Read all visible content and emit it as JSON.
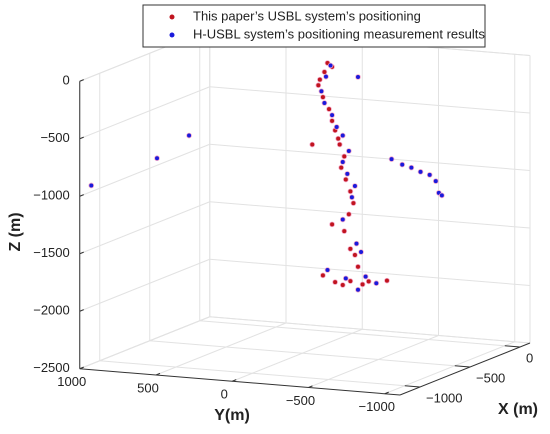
{
  "chart_data": {
    "type": "scatter3d",
    "xlabel": "X (m)",
    "ylabel": "Y(m)",
    "zlabel": "Z (m)",
    "xlim": [
      -1200,
      100
    ],
    "ylim": [
      -1100,
      1000
    ],
    "zlim": [
      -2500,
      0
    ],
    "xticks": [
      {
        "value": -1000,
        "label": "−1000"
      },
      {
        "value": -500,
        "label": "−500"
      },
      0
    ],
    "yticks": [
      1000,
      500,
      0,
      {
        "value": -500,
        "label": "−500"
      },
      {
        "value": -1000,
        "label": "−1000"
      }
    ],
    "zticks": [
      0,
      {
        "value": -500,
        "label": "−500"
      },
      {
        "value": -1000,
        "label": "−1000"
      },
      {
        "value": -1500,
        "label": "−1500"
      },
      {
        "value": -2000,
        "label": "−2000"
      },
      {
        "value": -2500,
        "label": "−2500"
      }
    ],
    "grid": true,
    "series": [
      {
        "name": "This paper’s USBL system’s positioning",
        "color": "#c0141e",
        "x": [
          -400,
          -400,
          -400,
          -400,
          -400,
          -400,
          -400,
          -400,
          -400,
          -400,
          -400,
          -400,
          -400,
          -400,
          -400,
          -400,
          -400,
          -400,
          -400,
          -400,
          -400,
          -400,
          -400,
          -400,
          -400,
          -400,
          -400,
          -400,
          -400,
          -400
        ],
        "y": [
          -100,
          -130,
          -80,
          -50,
          -40,
          -70,
          -110,
          -130,
          -150,
          -170,
          -180,
          0,
          -210,
          -190,
          -220,
          -250,
          -270,
          -240,
          -130,
          -210,
          -250,
          -280,
          -300,
          -70,
          -150,
          -250,
          -370,
          -490,
          -200,
          -330
        ],
        "z": [
          0,
          -30,
          -80,
          -150,
          -200,
          -300,
          -400,
          -500,
          -580,
          -650,
          -700,
          -720,
          -800,
          -900,
          -1000,
          -1100,
          -1200,
          -1300,
          -1400,
          -1450,
          -1600,
          -1650,
          -1750,
          -1850,
          -1900,
          -1880,
          -1870,
          -1850,
          -1920,
          -1900
        ]
      },
      {
        "name": "H-USBL system’s positioning measurement results",
        "color": "#1a1adc",
        "x": [
          -400,
          -400,
          -400,
          -400,
          -400,
          -400,
          -400,
          -400,
          -400,
          -400,
          -400,
          -400,
          -400,
          -400,
          -400,
          -400,
          -400,
          -400,
          -400,
          -400,
          -1100,
          -900,
          -900,
          -400,
          -400,
          -400,
          -400,
          -400,
          -400,
          -400,
          -400,
          -400
        ],
        "y": [
          -120,
          -90,
          -60,
          -80,
          -130,
          -160,
          -200,
          -240,
          -200,
          -230,
          -280,
          -260,
          -200,
          -290,
          -320,
          -100,
          -220,
          -350,
          -420,
          -300,
          990,
          690,
          480,
          -300,
          -520,
          -590,
          -650,
          -710,
          -770,
          -810,
          -830,
          -850
        ],
        "z": [
          -20,
          -120,
          -250,
          -350,
          -450,
          -550,
          -620,
          -750,
          -850,
          -950,
          -1050,
          -1150,
          -1350,
          -1550,
          -1620,
          -1800,
          -1860,
          -1830,
          -1880,
          -1950,
          -940,
          -740,
          -520,
          -100,
          -790,
          -830,
          -850,
          -880,
          -900,
          -950,
          -1050,
          -1070
        ]
      }
    ]
  }
}
